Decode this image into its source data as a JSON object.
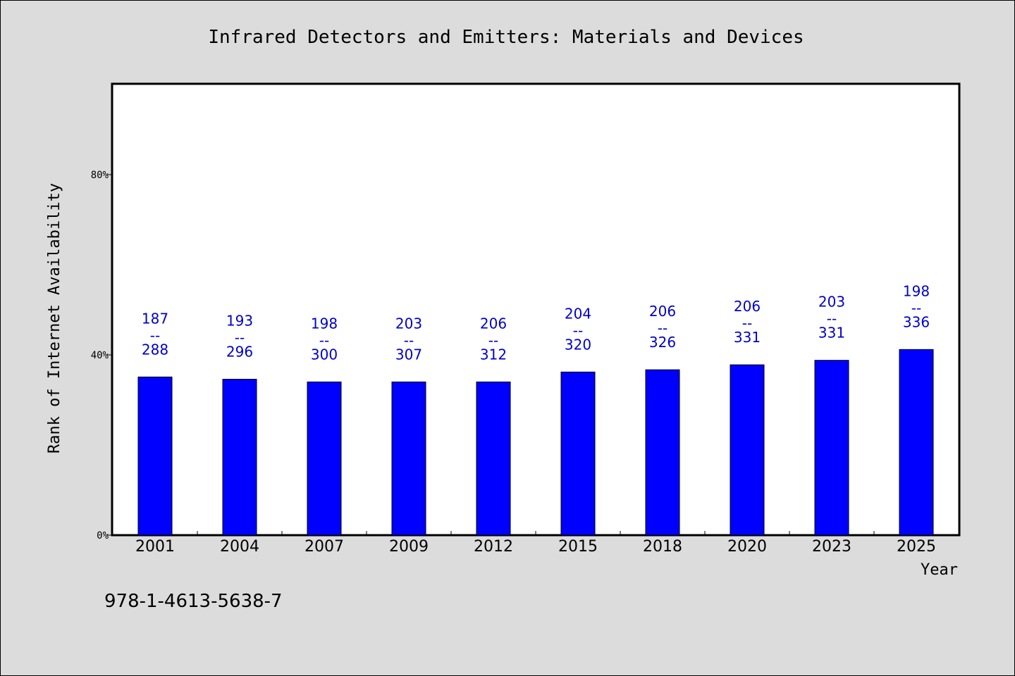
{
  "colors": {
    "background": "#dcdcdc",
    "plot_background": "#ffffff",
    "bar": "#0000ff",
    "data_label": "#0000cc"
  },
  "footer": {
    "isbn": "978-1-4613-5638-7"
  },
  "chart_data": {
    "type": "bar",
    "title": "Infrared Detectors and Emitters: Materials and Devices",
    "xlabel": "Year",
    "ylabel": "Rank of Internet Availability",
    "ylim": [
      0,
      100
    ],
    "yticks": [
      0,
      40,
      80
    ],
    "ytick_labels": [
      "0%",
      "40%",
      "80%"
    ],
    "grid": false,
    "categories": [
      "2001",
      "2004",
      "2007",
      "2009",
      "2012",
      "2015",
      "2018",
      "2020",
      "2023",
      "2025"
    ],
    "values": [
      35.1,
      34.6,
      34.0,
      34.0,
      34.0,
      36.2,
      36.7,
      37.8,
      38.8,
      41.2
    ],
    "label_top": [
      "187",
      "193",
      "198",
      "203",
      "206",
      "204",
      "206",
      "206",
      "203",
      "198"
    ],
    "label_sep": "--",
    "label_bottom": [
      "288",
      "296",
      "300",
      "307",
      "312",
      "320",
      "326",
      "331",
      "331",
      "336"
    ]
  }
}
